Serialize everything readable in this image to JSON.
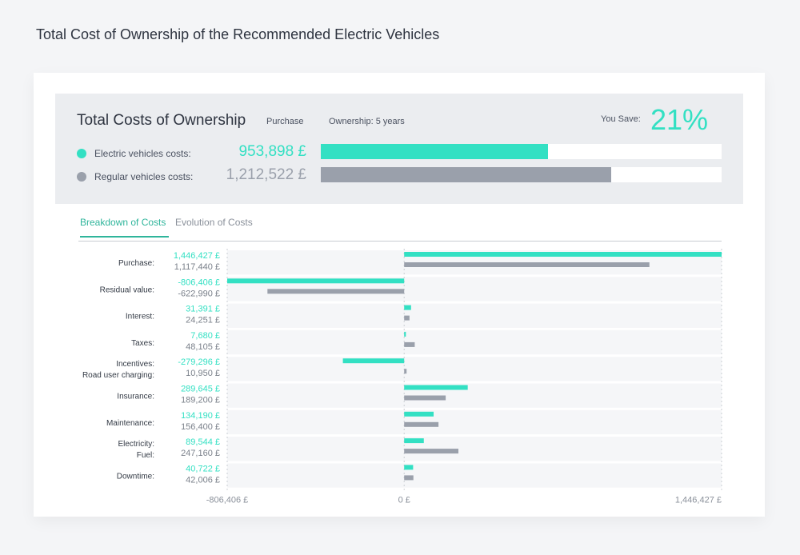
{
  "page_title": "Total Cost of Ownership of the Recommended Electric Vehicles",
  "summary": {
    "title": "Total Costs of Ownership",
    "tab_purchase": "Purchase",
    "tab_ownership": "Ownership: 5 years",
    "save_label": "You Save:",
    "save_value": "21%",
    "ev": {
      "label": "Electric vehicles costs:",
      "value": "953,898 £",
      "fraction": 0.567,
      "color": "#33e0c3"
    },
    "regular": {
      "label": "Regular vehicles costs:",
      "value": "1,212,522 £",
      "fraction": 0.724,
      "color": "#9aa0ab"
    }
  },
  "tabs": [
    "Breakdown of Costs",
    "Evolution of Costs"
  ],
  "chart_data": {
    "type": "bar",
    "orientation": "horizontal",
    "xlim": [
      -806406,
      1446427
    ],
    "xticks": [
      {
        "value": -806406,
        "label": "-806,406 £"
      },
      {
        "value": 0,
        "label": "0 £"
      },
      {
        "value": 1446427,
        "label": "1,446,427 £"
      }
    ],
    "ev_color": "#33e0c3",
    "reg_color": "#9aa0ab",
    "rows": [
      {
        "label": "Purchase:",
        "ev": 1446427,
        "ev_label": "1,446,427 £",
        "reg": 1117440,
        "reg_label": "1,117,440 £"
      },
      {
        "label": "Residual value:",
        "ev": -806406,
        "ev_label": "-806,406 £",
        "reg": -622990,
        "reg_label": "-622,990 £"
      },
      {
        "label": "Interest:",
        "ev": 31391,
        "ev_label": "31,391 £",
        "reg": 24251,
        "reg_label": "24,251 £"
      },
      {
        "label": "Taxes:",
        "ev": 7680,
        "ev_label": "7,680 £",
        "reg": 48105,
        "reg_label": "48,105 £"
      },
      {
        "label": "Incentives:",
        "label2": "Road user charging:",
        "ev": -279296,
        "ev_label": "-279,296 £",
        "reg": 10950,
        "reg_label": "10,950 £"
      },
      {
        "label": "Insurance:",
        "ev": 289645,
        "ev_label": "289,645 £",
        "reg": 189200,
        "reg_label": "189,200 £"
      },
      {
        "label": "Maintenance:",
        "ev": 134190,
        "ev_label": "134,190 £",
        "reg": 156400,
        "reg_label": "156,400 £"
      },
      {
        "label": "Electricity:",
        "label2": "Fuel:",
        "ev": 89544,
        "ev_label": "89,544 £",
        "reg": 247160,
        "reg_label": "247,160 £"
      },
      {
        "label": "Downtime:",
        "ev": 40722,
        "ev_label": "40,722 £",
        "reg": 42006,
        "reg_label": "42,006 £"
      }
    ]
  }
}
